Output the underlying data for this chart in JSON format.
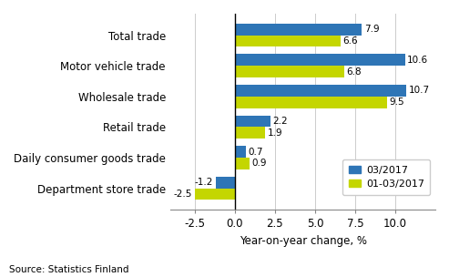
{
  "categories": [
    "Department store trade",
    "Daily consumer goods trade",
    "Retail trade",
    "Wholesale trade",
    "Motor vehicle trade",
    "Total trade"
  ],
  "series": {
    "03/2017": [
      -1.2,
      0.7,
      2.2,
      10.7,
      10.6,
      7.9
    ],
    "01-03/2017": [
      -2.5,
      0.9,
      1.9,
      9.5,
      6.8,
      6.6
    ]
  },
  "colors": {
    "03/2017": "#2e75b6",
    "01-03/2017": "#c4d600"
  },
  "xlabel": "Year-on-year change, %",
  "xlim": [
    -4.0,
    12.5
  ],
  "xticks": [
    -2.5,
    0.0,
    2.5,
    5.0,
    7.5,
    10.0
  ],
  "xtick_labels": [
    "-2.5",
    "0.0",
    "2.5",
    "5.0",
    "7.5",
    "10.0"
  ],
  "source": "Source: Statistics Finland",
  "bar_height": 0.38,
  "background_color": "#ffffff"
}
